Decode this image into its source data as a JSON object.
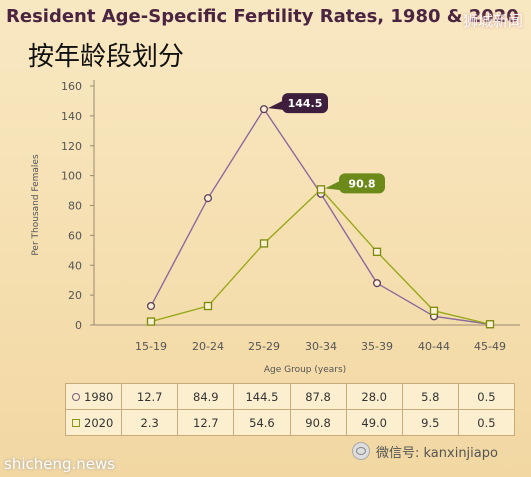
{
  "title": "Resident Age-Specific Fertility Rates, 1980 & 2020",
  "subtitle_cn": "按年龄段划分",
  "watermark_top": "狮城新闻",
  "watermark_bottom": "shicheng.news",
  "wechat_label": "微信号: kanxinjiapo",
  "colors": {
    "series_1980": "#8b6a9e",
    "series_2020": "#98a819",
    "callout_1980": "#3d1f3d",
    "callout_2020": "#6b8a1a"
  },
  "chart_data": {
    "type": "line",
    "title": "Resident Age-Specific Fertility Rates, 1980 & 2020",
    "xlabel": "Age Group (years)",
    "ylabel": "Per Thousand Females",
    "categories": [
      "15-19",
      "20-24",
      "25-29",
      "30-34",
      "35-39",
      "40-44",
      "45-49"
    ],
    "ylim": [
      0,
      160
    ],
    "yticks": [
      0,
      20,
      40,
      60,
      80,
      100,
      120,
      140,
      160
    ],
    "grid": false,
    "series": [
      {
        "name": "1980",
        "marker": "circle",
        "values": [
          12.7,
          84.9,
          144.5,
          87.8,
          28.0,
          5.8,
          0.5
        ],
        "callout": "144.5"
      },
      {
        "name": "2020",
        "marker": "square",
        "values": [
          2.3,
          12.7,
          54.6,
          90.8,
          49.0,
          9.5,
          0.5
        ],
        "callout": "90.8"
      }
    ]
  },
  "table": {
    "rows": [
      {
        "label": "1980",
        "cells": [
          "12.7",
          "84.9",
          "144.5",
          "87.8",
          "28.0",
          "5.8",
          "0.5"
        ]
      },
      {
        "label": "2020",
        "cells": [
          "2.3",
          "12.7",
          "54.6",
          "90.8",
          "49.0",
          "9.5",
          "0.5"
        ]
      }
    ]
  }
}
